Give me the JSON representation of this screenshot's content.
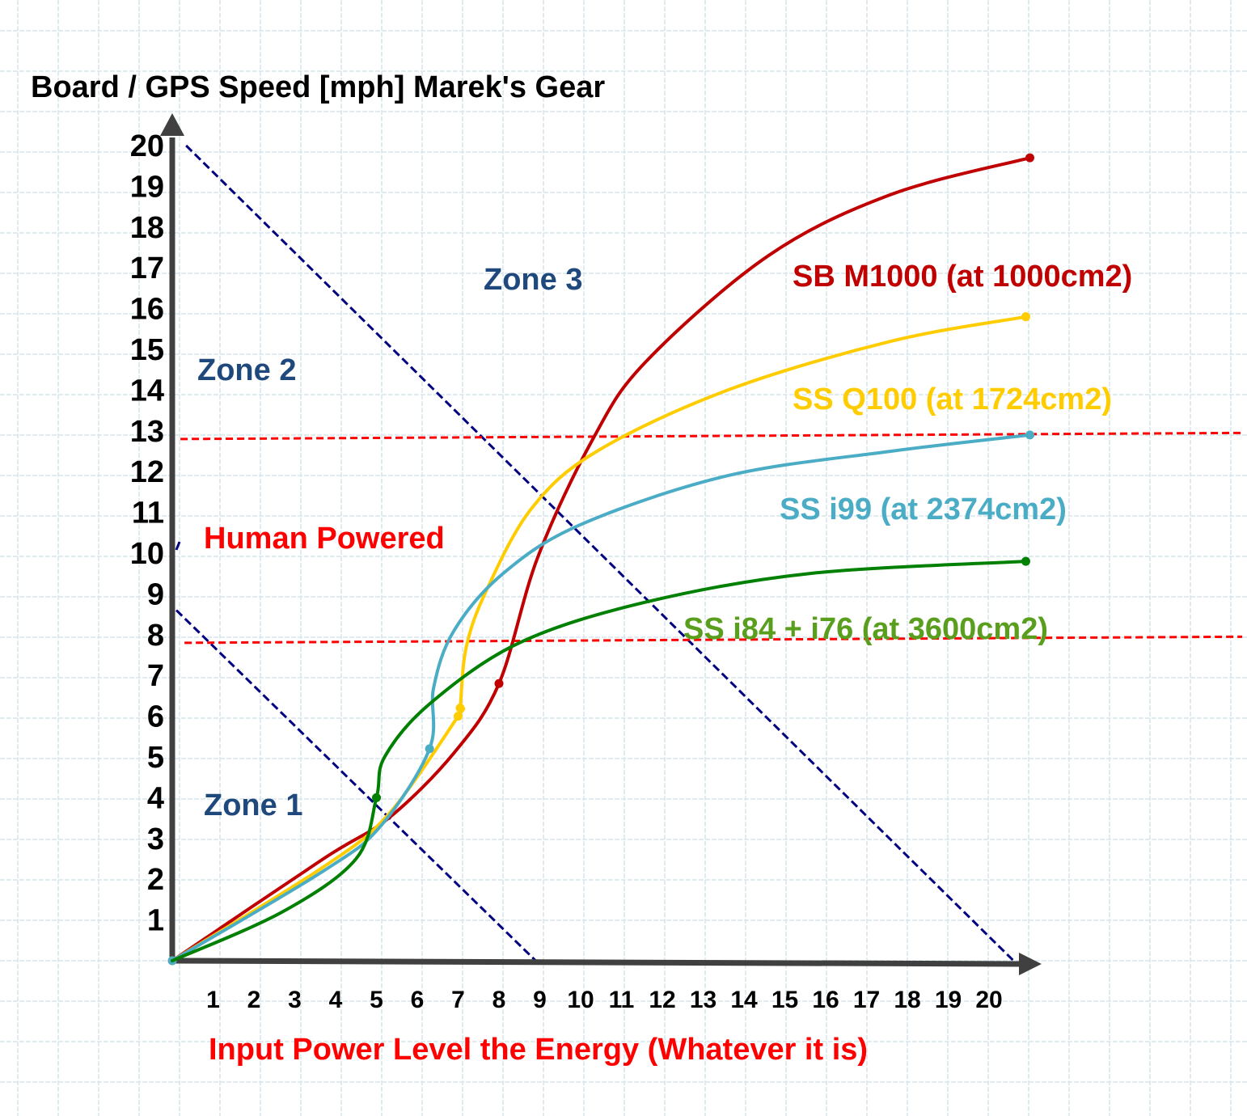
{
  "chart_data": {
    "type": "line",
    "title": "Board / GPS Speed [mph] Marek's Gear",
    "xlabel": "Input Power Level the Energy (Whatever it is)",
    "ylabel": "",
    "xlim": [
      0,
      21
    ],
    "ylim": [
      0,
      20
    ],
    "grid": true,
    "x_ticks": [
      "1",
      "2",
      "3",
      "4",
      "5",
      "6",
      "7",
      "8",
      "9",
      "10",
      "11",
      "12",
      "13",
      "14",
      "15",
      "16",
      "17",
      "18",
      "19",
      "20"
    ],
    "y_ticks": [
      "1",
      "2",
      "3",
      "4",
      "5",
      "6",
      "7",
      "8",
      "9",
      "10",
      "11",
      "12",
      "13",
      "14",
      "15",
      "16",
      "17",
      "18",
      "19",
      "20"
    ],
    "series": [
      {
        "name": "SB M1000 (at 1000cm2)",
        "color": "#c00000",
        "points": [
          [
            0,
            0
          ],
          [
            3.7,
            2.5
          ],
          [
            5.3,
            3.5
          ],
          [
            6.9,
            5.1
          ],
          [
            8.0,
            6.8
          ],
          [
            8.95,
            9.9
          ],
          [
            10.3,
            12.8
          ],
          [
            11.6,
            14.7
          ],
          [
            14.6,
            17.3
          ],
          [
            17.6,
            18.8
          ],
          [
            21.0,
            19.7
          ]
        ],
        "markers": [
          [
            8.0,
            6.8
          ],
          [
            21.0,
            19.7
          ]
        ]
      },
      {
        "name": "SS Q100 (at 1724cm2)",
        "color": "#ffcc00",
        "points": [
          [
            0,
            0
          ],
          [
            3.7,
            2.3
          ],
          [
            5.3,
            3.6
          ],
          [
            7.0,
            6.0
          ],
          [
            7.05,
            6.2
          ],
          [
            7.2,
            7.7
          ],
          [
            7.7,
            9.1
          ],
          [
            8.8,
            11.1
          ],
          [
            10.4,
            12.5
          ],
          [
            13.6,
            14.0
          ],
          [
            17.6,
            15.2
          ],
          [
            20.9,
            15.8
          ]
        ],
        "markers": [
          [
            0,
            0
          ],
          [
            7.0,
            6.0
          ],
          [
            7.05,
            6.2
          ],
          [
            20.9,
            15.8
          ]
        ]
      },
      {
        "name": "SS i99 (at 2374cm2)",
        "color": "#4bacc6",
        "points": [
          [
            0,
            0
          ],
          [
            3.7,
            2.2
          ],
          [
            5.1,
            3.3
          ],
          [
            6.3,
            5.2
          ],
          [
            6.4,
            6.7
          ],
          [
            6.9,
            8.1
          ],
          [
            8.1,
            9.5
          ],
          [
            10.0,
            10.7
          ],
          [
            13.6,
            11.9
          ],
          [
            17.6,
            12.5
          ],
          [
            21.0,
            12.9
          ]
        ],
        "markers": [
          [
            0,
            0
          ],
          [
            6.3,
            5.2
          ],
          [
            21.0,
            12.9
          ]
        ]
      },
      {
        "name": "SS i84 + i76 (at 3600cm2)",
        "color": "#008000",
        "points": [
          [
            0,
            0
          ],
          [
            2.7,
            1.2
          ],
          [
            4.5,
            2.5
          ],
          [
            5.0,
            4.0
          ],
          [
            5.2,
            5.0
          ],
          [
            6.3,
            6.3
          ],
          [
            8.5,
            7.8
          ],
          [
            11.6,
            8.8
          ],
          [
            15.6,
            9.5
          ],
          [
            20.9,
            9.8
          ]
        ],
        "markers": [
          [
            5.0,
            4.0
          ],
          [
            20.9,
            9.8
          ]
        ]
      }
    ],
    "reference_lines": [
      {
        "kind": "zone-boundary",
        "color": "#000080",
        "from": [
          0.34,
          20
        ],
        "to": [
          20.6,
          0
        ]
      },
      {
        "kind": "zone-boundary",
        "color": "#000080",
        "from": [
          0.1,
          8.6
        ],
        "to": [
          8.9,
          0
        ]
      },
      {
        "kind": "threshold",
        "color": "#ff0000",
        "from": [
          0.2,
          12.8
        ],
        "to": [
          26.2,
          12.95
        ]
      },
      {
        "kind": "threshold",
        "color": "#ff0000",
        "from": [
          0.3,
          7.8
        ],
        "to": [
          26.2,
          7.95
        ]
      }
    ],
    "annotations": [
      {
        "text": "Zone 1",
        "color": "#1f497d"
      },
      {
        "text": "Zone 2",
        "color": "#1f497d"
      },
      {
        "text": "Zone 3",
        "color": "#1f497d"
      },
      {
        "text": "Human Powered",
        "color": "#ff0000"
      }
    ],
    "label_colors": {
      "title": "#000000",
      "xlabel": "#ff0000",
      "ticks": "#000000"
    },
    "series_label_colors": [
      "#c00000",
      "#ffcc00",
      "#4bacc6",
      "#5a9e1e"
    ]
  }
}
